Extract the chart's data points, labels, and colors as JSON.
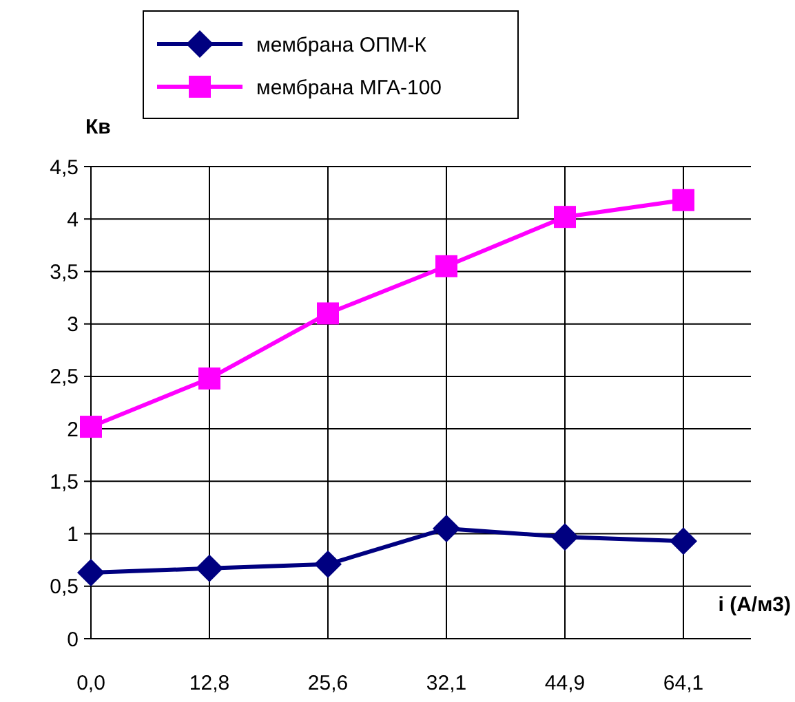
{
  "chart_data": {
    "type": "line",
    "ylabel": "Кв",
    "xlabel": "i (А/м3)",
    "categories": [
      "0,0",
      "12,8",
      "25,6",
      "32,1",
      "44,9",
      "64,1"
    ],
    "series": [
      {
        "name": "мембрана ОПМ-К",
        "color": "#000080",
        "marker": "diamond",
        "values": [
          0.63,
          0.67,
          0.71,
          1.05,
          0.97,
          0.93
        ]
      },
      {
        "name": "мембрана МГА-100",
        "color": "#ff00ff",
        "marker": "square",
        "values": [
          2.02,
          2.48,
          3.1,
          3.55,
          4.02,
          4.18
        ]
      }
    ],
    "ylim": [
      0,
      4.5
    ],
    "yticks": [
      0,
      {
        "value": 0.5,
        "label": "0,5"
      },
      1,
      {
        "value": 1.5,
        "label": "1,5"
      },
      2,
      {
        "value": 2.5,
        "label": "2,5"
      },
      3,
      {
        "value": 3.5,
        "label": "3,5"
      },
      4,
      {
        "value": 4.5,
        "label": "4,5"
      }
    ],
    "grid": true,
    "legend": "top"
  }
}
